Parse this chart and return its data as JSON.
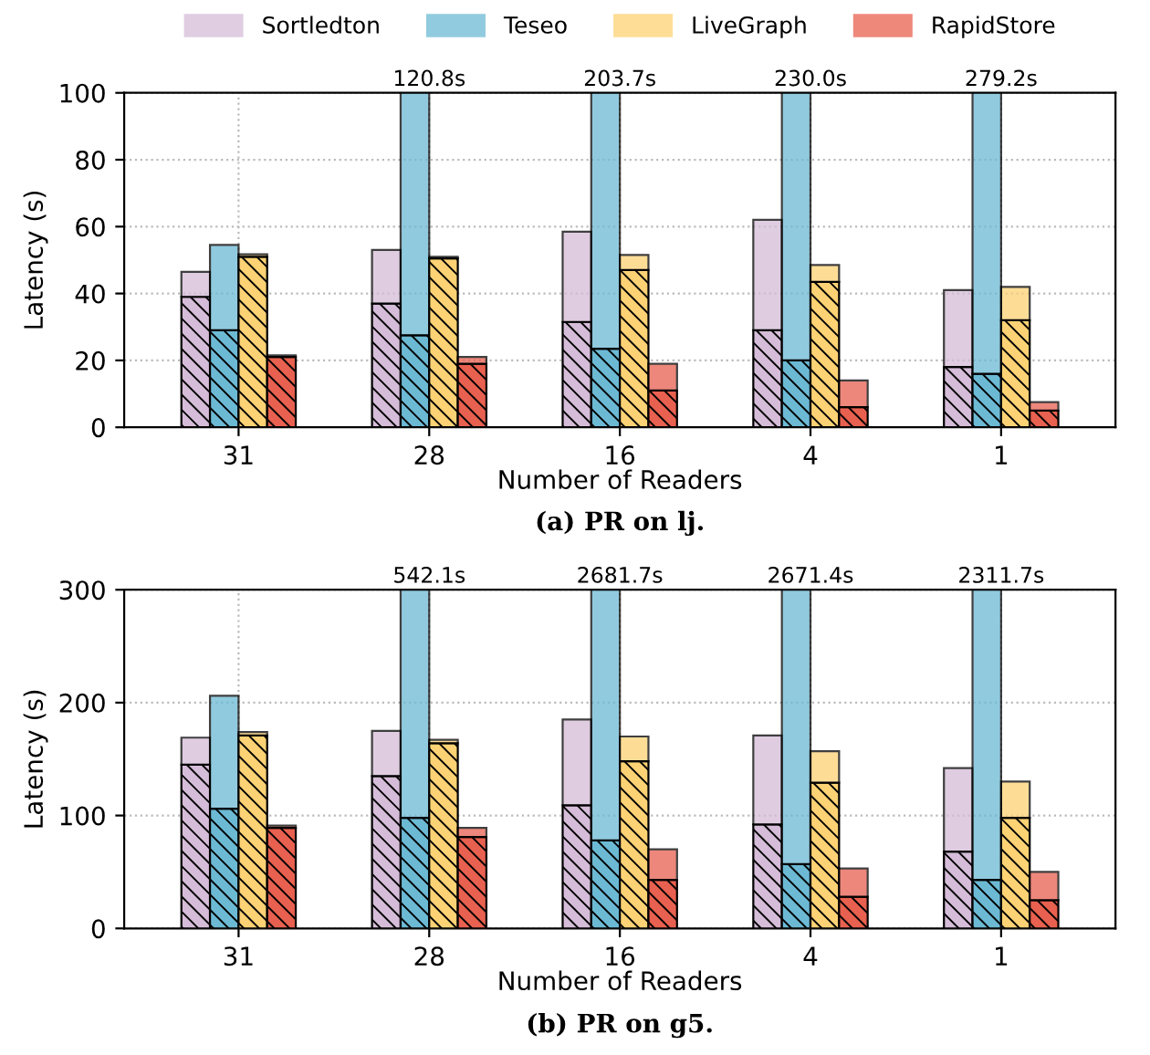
{
  "chart_data": [
    {
      "type": "bar",
      "title": "(a) PR on lj.",
      "xlabel": "Number of Readers",
      "ylabel": "Latency (s)",
      "categories": [
        "31",
        "28",
        "16",
        "4",
        "1"
      ],
      "ylim": [
        0,
        100
      ],
      "yticks": [
        0,
        20,
        40,
        60,
        80,
        100
      ],
      "grid": true,
      "legend": "top",
      "series": [
        {
          "color": "#d5bcd8",
          "values": [
            39,
            37,
            31.5,
            29,
            18
          ]
        },
        {
          "name": "Sortledton",
          "color": "#d5bcd8",
          "values": [
            7.5,
            16,
            27,
            33,
            23
          ],
          "base": [
            39,
            37,
            31.5,
            29,
            18
          ]
        },
        {
          "color": "#6cb9d4",
          "values": [
            29,
            27.5,
            23.5,
            20,
            16
          ]
        },
        {
          "name": "Teseo",
          "color": "#6cb9d4",
          "values": [
            25.5,
            72.5,
            76.5,
            80,
            84
          ],
          "base": [
            29,
            27.5,
            23.5,
            20,
            16
          ]
        },
        {
          "color": "#fdd274",
          "values": [
            51,
            50.5,
            47,
            43.5,
            32
          ]
        },
        {
          "name": "LiveGraph",
          "color": "#fdd274",
          "values": [
            0.7,
            0.5,
            4.5,
            5,
            10
          ],
          "base": [
            51,
            50.5,
            47,
            43.5,
            32
          ]
        },
        {
          "color": "#e8604f",
          "values": [
            21,
            19,
            11,
            6,
            5
          ]
        },
        {
          "name": "RapidStore",
          "color": "#e8604f",
          "values": [
            0.5,
            2,
            8,
            8,
            2.5
          ],
          "base": [
            21,
            19,
            11,
            6,
            5
          ]
        }
      ],
      "annotations": [
        {
          "text": "120.8s",
          "x": "28",
          "y": 100
        },
        {
          "text": "203.7s",
          "x": "16",
          "y": 100
        },
        {
          "text": "230.0s",
          "x": "4",
          "y": 100
        },
        {
          "text": "279.2s",
          "x": "1",
          "y": 100
        }
      ]
    },
    {
      "type": "bar",
      "title": "(b) PR on g5.",
      "xlabel": "Number of Readers",
      "ylabel": "Latency (s)",
      "categories": [
        "31",
        "28",
        "16",
        "4",
        "1"
      ],
      "ylim": [
        0,
        300
      ],
      "yticks": [
        0,
        100,
        200,
        300
      ],
      "grid": true,
      "series": [
        {
          "color": "#d5bcd8",
          "values": [
            145,
            135,
            109,
            92,
            68
          ]
        },
        {
          "color": "#d5bcd8",
          "values": [
            24,
            40,
            76,
            79,
            74
          ],
          "base": [
            145,
            135,
            109,
            92,
            68
          ]
        },
        {
          "color": "#6cb9d4",
          "values": [
            106,
            98,
            78,
            57,
            43
          ]
        },
        {
          "color": "#6cb9d4",
          "values": [
            100,
            202,
            222,
            243,
            257
          ],
          "base": [
            106,
            98,
            78,
            57,
            43
          ]
        },
        {
          "color": "#fdd274",
          "values": [
            171,
            164,
            148,
            129,
            98
          ]
        },
        {
          "color": "#fdd274",
          "values": [
            3,
            3,
            22,
            28,
            32
          ],
          "base": [
            171,
            164,
            148,
            129,
            98
          ]
        },
        {
          "color": "#e8604f",
          "values": [
            89,
            81,
            43,
            28,
            25
          ]
        },
        {
          "color": "#e8604f",
          "values": [
            2,
            8,
            27,
            25,
            25
          ],
          "base": [
            89,
            81,
            43,
            28,
            25
          ]
        }
      ],
      "annotations": [
        {
          "text": "542.1s",
          "x": "28",
          "y": 300
        },
        {
          "text": "2681.7s",
          "x": "16",
          "y": 300
        },
        {
          "text": "2671.4s",
          "x": "4",
          "y": 300
        },
        {
          "text": "2311.7s",
          "x": "1",
          "y": 300
        }
      ]
    }
  ]
}
